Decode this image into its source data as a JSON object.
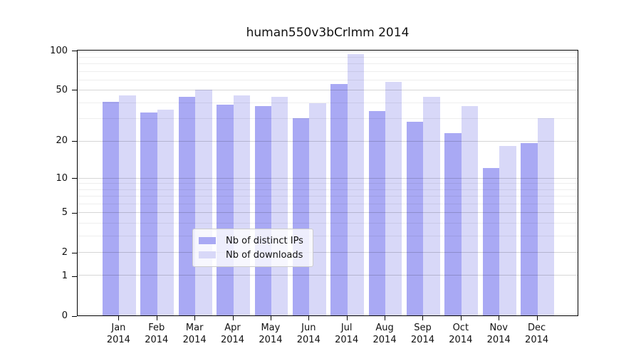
{
  "title": "human550v3bCrlmm 2014",
  "chart_data": {
    "type": "bar",
    "title": "human550v3bCrlmm 2014",
    "categories": [
      "Jan",
      "Feb",
      "Mar",
      "Apr",
      "May",
      "Jun",
      "Jul",
      "Aug",
      "Sep",
      "Oct",
      "Nov",
      "Dec"
    ],
    "year_label": "2014",
    "series": [
      {
        "name": "Nb of distinct IPs",
        "color": "#a9a9f4",
        "values": [
          40,
          33,
          44,
          38,
          37,
          30,
          55,
          34,
          28,
          23,
          12,
          19
        ]
      },
      {
        "name": "Nb of downloads",
        "color": "#d8d8f8",
        "values": [
          45,
          35,
          50,
          45,
          44,
          39,
          93,
          57,
          44,
          37,
          18,
          30
        ]
      }
    ],
    "xlabel": "",
    "ylabel": "",
    "y_scale": "log10(1+value)",
    "y_ticks": [
      0,
      1,
      2,
      5,
      10,
      20,
      50,
      100
    ],
    "y_minor_gridlines": [
      3,
      4,
      6,
      7,
      8,
      9,
      30,
      40,
      60,
      70,
      80,
      90
    ],
    "ylim": [
      0,
      103
    ],
    "grid": true,
    "legend_position": "bottom-center"
  },
  "legend": {
    "items": [
      {
        "label": "Nb of distinct IPs"
      },
      {
        "label": "Nb of downloads"
      }
    ]
  }
}
